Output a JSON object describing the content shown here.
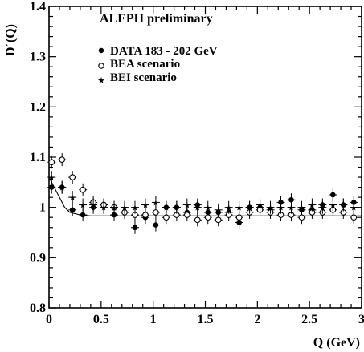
{
  "chart_data": {
    "type": "scatter",
    "title": "ALEPH preliminary",
    "xlabel": "Q (GeV)",
    "ylabel": "D´(Q)",
    "xlim": [
      0,
      3
    ],
    "ylim": [
      0.8,
      1.4
    ],
    "x_ticks": [
      0,
      0.5,
      1,
      1.5,
      2,
      2.5,
      3
    ],
    "x_tick_labels": [
      "0",
      "0.5",
      "1",
      "1.5",
      "2",
      "2.5",
      "3"
    ],
    "y_ticks": [
      0.8,
      0.9,
      1.0,
      1.1,
      1.2,
      1.3,
      1.4
    ],
    "y_tick_labels": [
      "0.8",
      "0.9",
      "1",
      "1.1",
      "1.2",
      "1.3",
      "1.4"
    ],
    "legend_position": "top",
    "series": [
      {
        "name": "DATA 183 - 202 GeV",
        "marker": "filled-circle",
        "points": [
          [
            0.025,
            1.04
          ],
          [
            0.125,
            1.04
          ],
          [
            0.225,
            0.995
          ],
          [
            0.325,
            0.985
          ],
          [
            0.425,
            1.0
          ],
          [
            0.525,
            1.005
          ],
          [
            0.625,
            0.985
          ],
          [
            0.725,
            0.99
          ],
          [
            0.825,
            0.96
          ],
          [
            0.925,
            0.98
          ],
          [
            1.025,
            0.965
          ],
          [
            1.125,
            1.0
          ],
          [
            1.225,
            1.0
          ],
          [
            1.325,
            0.99
          ],
          [
            1.425,
            1.005
          ],
          [
            1.525,
            0.99
          ],
          [
            1.625,
            0.99
          ],
          [
            1.725,
            0.99
          ],
          [
            1.825,
            0.97
          ],
          [
            1.925,
            1.0
          ],
          [
            2.025,
            1.0
          ],
          [
            2.125,
            0.995
          ],
          [
            2.225,
            1.01
          ],
          [
            2.325,
            1.015
          ],
          [
            2.425,
            0.995
          ],
          [
            2.525,
            0.995
          ],
          [
            2.625,
            1.005
          ],
          [
            2.725,
            1.025
          ],
          [
            2.825,
            1.005
          ],
          [
            2.925,
            1.01
          ]
        ]
      },
      {
        "name": "BEA scenario",
        "marker": "open-circle",
        "points": [
          [
            0.025,
            1.09
          ],
          [
            0.125,
            1.095
          ],
          [
            0.225,
            1.06
          ],
          [
            0.325,
            1.035
          ],
          [
            0.425,
            1.01
          ],
          [
            0.525,
            1.005
          ],
          [
            0.625,
            1.0
          ],
          [
            0.725,
            0.99
          ],
          [
            0.825,
            0.985
          ],
          [
            0.925,
            0.985
          ],
          [
            1.025,
            0.99
          ],
          [
            1.125,
            0.98
          ],
          [
            1.225,
            0.985
          ],
          [
            1.325,
            0.985
          ],
          [
            1.425,
            0.975
          ],
          [
            1.525,
            0.98
          ],
          [
            1.625,
            0.975
          ],
          [
            1.725,
            0.985
          ],
          [
            1.825,
            0.98
          ],
          [
            1.925,
            0.99
          ],
          [
            2.025,
            0.995
          ],
          [
            2.125,
            0.99
          ],
          [
            2.225,
            0.985
          ],
          [
            2.325,
            0.985
          ],
          [
            2.425,
            0.98
          ],
          [
            2.525,
            0.99
          ],
          [
            2.625,
            0.99
          ],
          [
            2.725,
            0.995
          ],
          [
            2.825,
            0.99
          ],
          [
            2.925,
            0.98
          ]
        ]
      },
      {
        "name": "BEI scenario",
        "marker": "star",
        "points": [
          [
            0.025,
            1.06
          ],
          [
            0.125,
            1.04
          ],
          [
            0.225,
            1.02
          ],
          [
            0.325,
            1.005
          ],
          [
            0.425,
            1.005
          ],
          [
            0.525,
            1.0
          ],
          [
            0.625,
            1.0
          ],
          [
            0.725,
            1.0
          ],
          [
            0.825,
            1.0
          ],
          [
            0.925,
            1.005
          ],
          [
            1.025,
            1.01
          ],
          [
            1.125,
            1.0
          ],
          [
            1.225,
            1.0
          ],
          [
            1.325,
            1.005
          ],
          [
            1.425,
            1.0
          ],
          [
            1.525,
            1.0
          ],
          [
            1.625,
            0.995
          ],
          [
            1.725,
            1.0
          ],
          [
            1.825,
            1.0
          ],
          [
            1.925,
            1.0
          ],
          [
            2.025,
            1.005
          ],
          [
            2.125,
            1.0
          ],
          [
            2.225,
            1.0
          ],
          [
            2.325,
            1.0
          ],
          [
            2.425,
            1.0
          ],
          [
            2.525,
            1.005
          ],
          [
            2.625,
            1.0
          ],
          [
            2.725,
            1.005
          ],
          [
            2.825,
            1.005
          ],
          [
            2.925,
            1.0
          ]
        ]
      }
    ],
    "fit_curve": {
      "points": [
        [
          0.0,
          1.06
        ],
        [
          0.05,
          1.04
        ],
        [
          0.1,
          1.02
        ],
        [
          0.15,
          1.0
        ],
        [
          0.2,
          0.99
        ],
        [
          0.3,
          0.985
        ],
        [
          0.4,
          0.983
        ],
        [
          0.6,
          0.983
        ],
        [
          1.0,
          0.983
        ],
        [
          1.5,
          0.983
        ],
        [
          2.0,
          0.983
        ],
        [
          2.5,
          0.983
        ],
        [
          3.0,
          0.983
        ]
      ]
    }
  }
}
